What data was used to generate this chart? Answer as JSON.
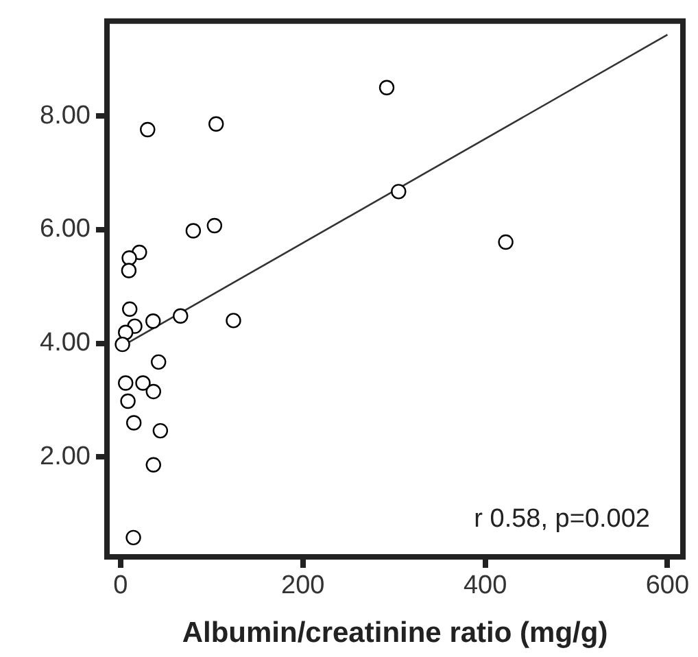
{
  "chart_data": {
    "type": "scatter",
    "xlabel": "Albumin/creatinine ratio (mg/g)",
    "xlim": [
      -15,
      617
    ],
    "xticks": [
      0,
      200,
      400,
      600
    ],
    "ylim": [
      0.24,
      9.67
    ],
    "yticks": [
      {
        "value": 2,
        "label": "2.00"
      },
      {
        "value": 4,
        "label": "4.00"
      },
      {
        "value": 6,
        "label": "6.00"
      },
      {
        "value": 8,
        "label": "8.00"
      }
    ],
    "marker": "circle",
    "grid": false,
    "legend": false,
    "annotations": [
      "r 0.58, p=0.002"
    ],
    "series": [
      {
        "type": "scatter",
        "color": "#000000",
        "x": [
          29.6,
          104.8,
          79.7,
          103,
          20.6,
          9.5,
          9,
          10,
          15.5,
          35.6,
          65.7,
          123.8,
          5.5,
          2,
          41.6,
          5.5,
          24.5,
          36,
          8,
          14.5,
          43.6,
          36,
          14,
          292,
          305,
          422.6
        ],
        "values": [
          7.76,
          7.86,
          5.98,
          6.07,
          5.6,
          5.5,
          5.28,
          4.6,
          4.3,
          4.39,
          4.48,
          4.4,
          4.19,
          3.98,
          3.67,
          3.3,
          3.3,
          3.15,
          2.98,
          2.6,
          2.46,
          1.86,
          0.58,
          8.5,
          6.67,
          5.78
        ]
      },
      {
        "type": "line",
        "color": "#333333",
        "marker": "none",
        "line_style": "solid",
        "x": [
          5,
          600
        ],
        "values": [
          3.98,
          9.43
        ]
      }
    ]
  }
}
